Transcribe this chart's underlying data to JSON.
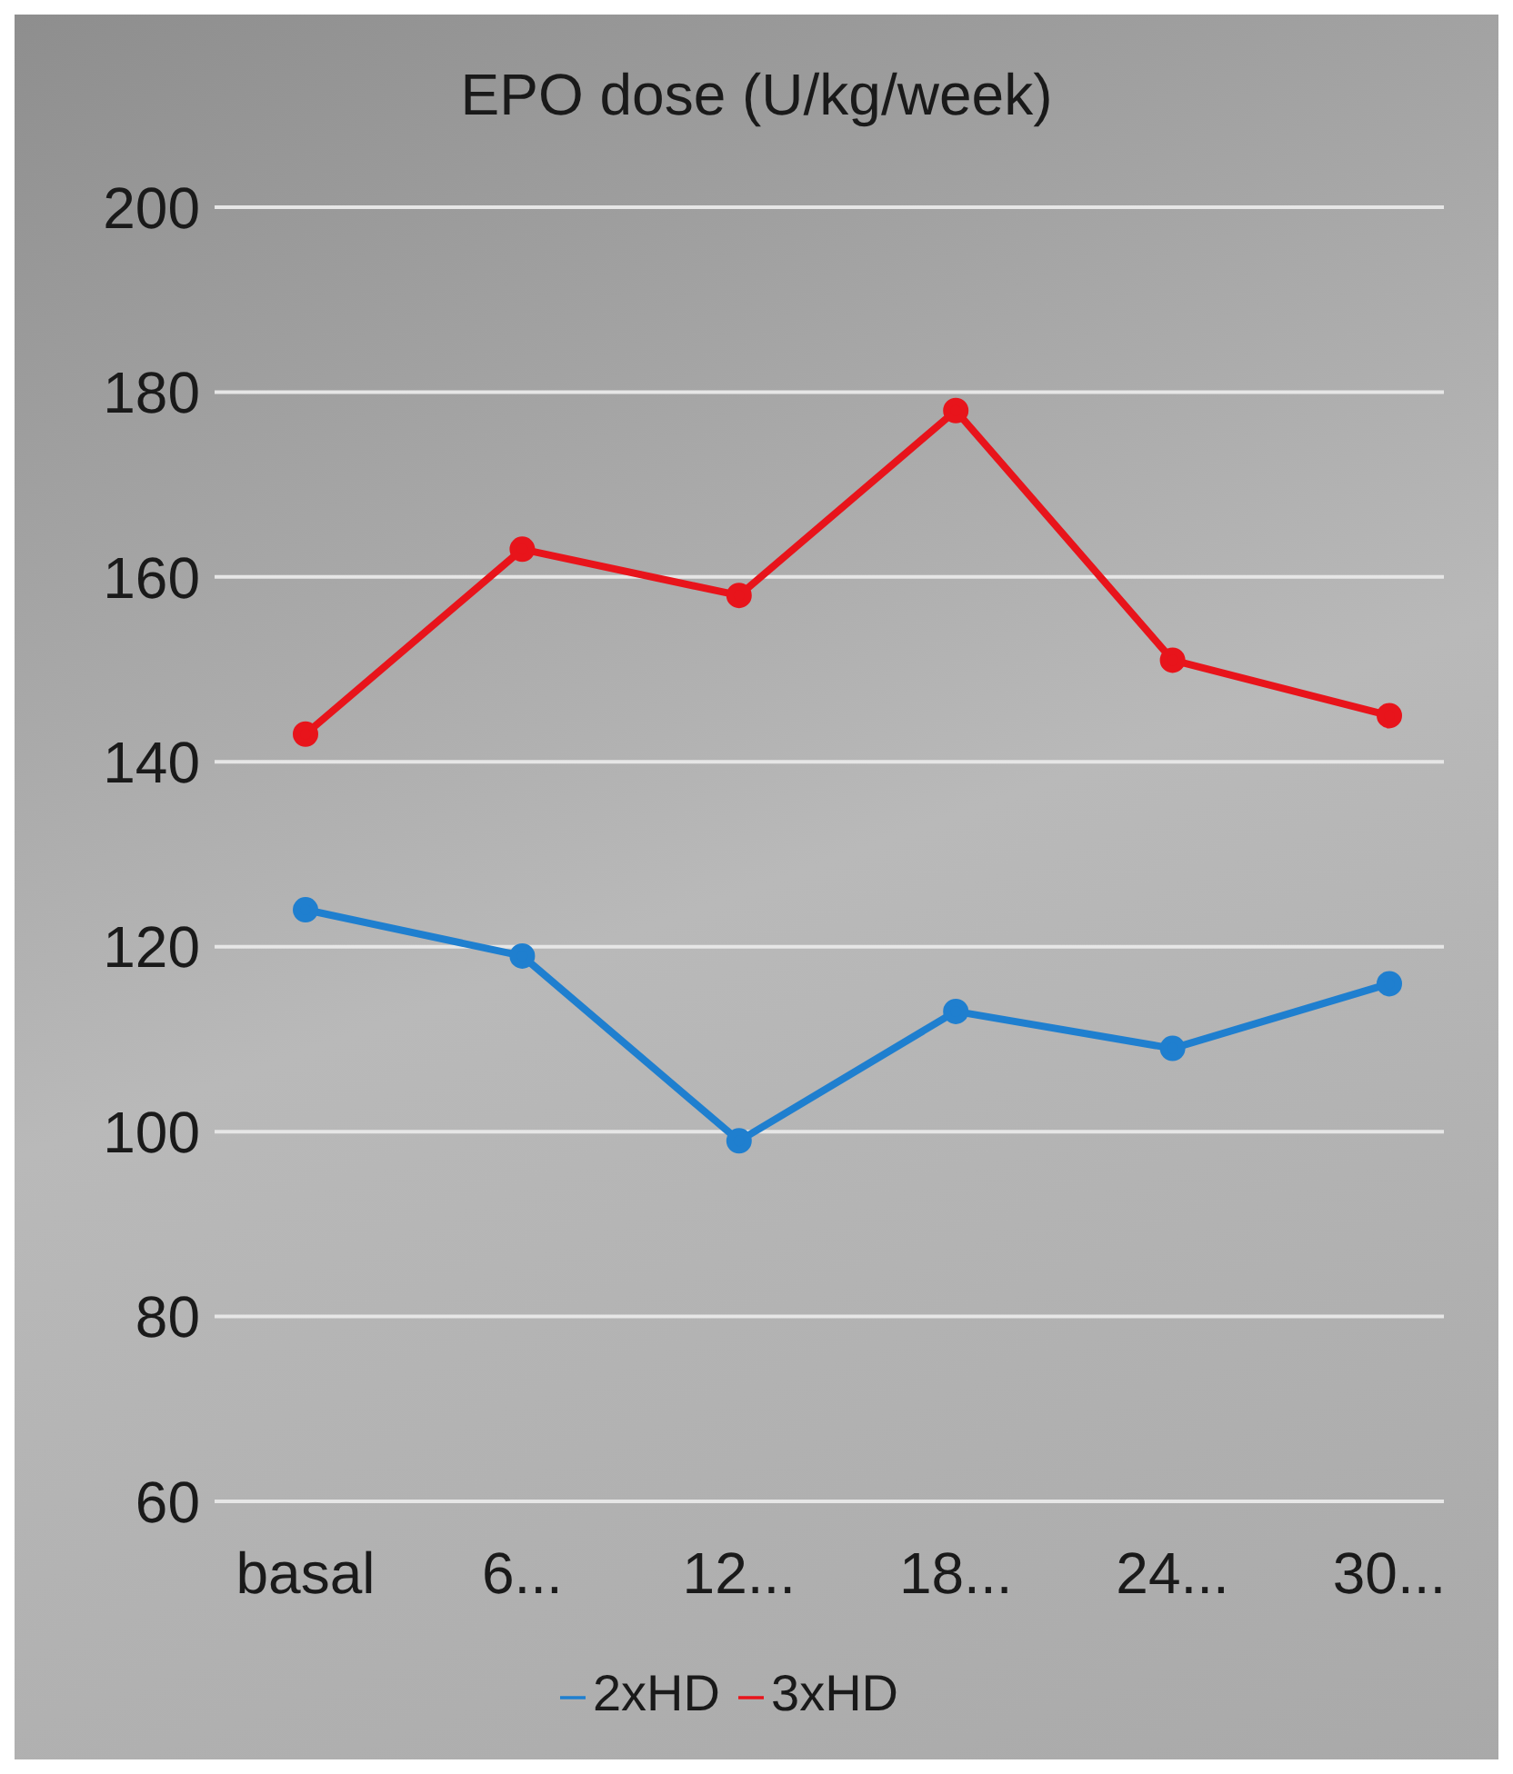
{
  "chart_data": {
    "type": "line",
    "title": "EPO dose (U/kg/week)",
    "categories": [
      "basal",
      "6...",
      "12...",
      "18...",
      "24...",
      "30..."
    ],
    "series": [
      {
        "name": "2xHD",
        "color": "#1f7fcf",
        "values": [
          124,
          119,
          99,
          113,
          109,
          116
        ]
      },
      {
        "name": "3xHD",
        "color": "#e8141b",
        "values": [
          143,
          163,
          158,
          178,
          151,
          145
        ]
      }
    ],
    "ylim": [
      60,
      200
    ],
    "yticks": [
      60,
      80,
      100,
      120,
      140,
      160,
      180,
      200
    ],
    "grid": "y",
    "legend": "bottom",
    "marker": "circle",
    "line_style": "solid"
  }
}
